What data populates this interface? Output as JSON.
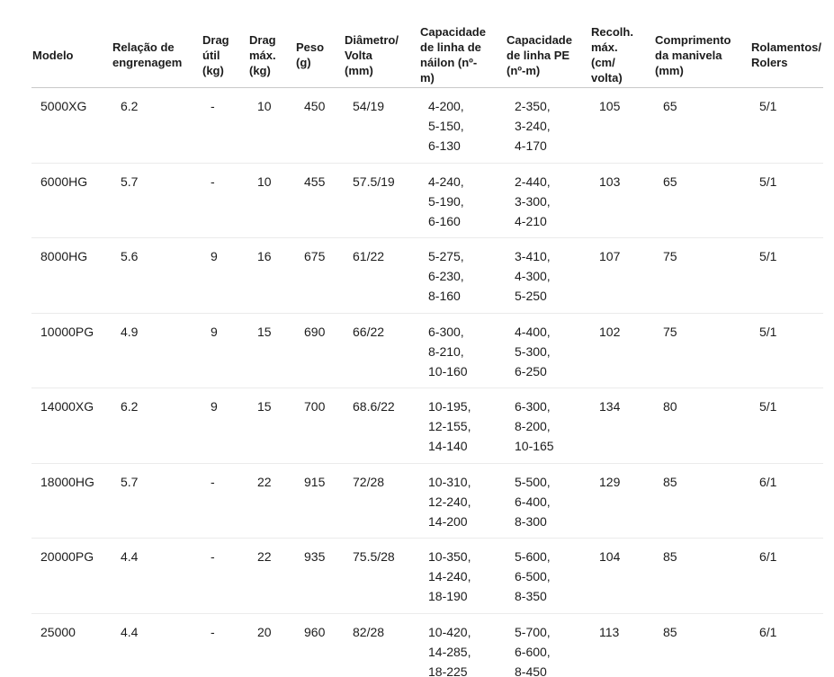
{
  "colors": {
    "background": "#ffffff",
    "text": "#1c1c1c",
    "header_divider": "#c9c9c9",
    "row_divider": "#ebebeb"
  },
  "chart_data": {
    "type": "table",
    "columns": [
      "Modelo",
      "Relação de\nengrenagem",
      "Drag\nútil\n(kg)",
      "Drag\nmáx.\n(kg)",
      "Peso\n(g)",
      "Diâmetro/\nVolta\n(mm)",
      "Capacidade\nde linha de\nnáilon (nº-\nm)",
      "Capacidade\nde linha PE\n(nº-m)",
      "Recolh.\nmáx.\n(cm/\nvolta)",
      "Comprimento\nda manivela\n(mm)",
      "Rolamentos/\nRolers"
    ],
    "rows": [
      [
        "5000XG",
        "6.2",
        "-",
        "10",
        "450",
        "54/19",
        "4-200,\n5-150,\n6-130",
        "2-350,\n3-240,\n4-170",
        "105",
        "65",
        "5/1"
      ],
      [
        "6000HG",
        "5.7",
        "-",
        "10",
        "455",
        "57.5/19",
        "4-240,\n5-190,\n6-160",
        "2-440,\n3-300,\n4-210",
        "103",
        "65",
        "5/1"
      ],
      [
        "8000HG",
        "5.6",
        "9",
        "16",
        "675",
        "61/22",
        "5-275,\n6-230,\n8-160",
        "3-410,\n4-300,\n5-250",
        "107",
        "75",
        "5/1"
      ],
      [
        "10000PG",
        "4.9",
        "9",
        "15",
        "690",
        "66/22",
        "6-300,\n8-210,\n10-160",
        "4-400,\n5-300,\n6-250",
        "102",
        "75",
        "5/1"
      ],
      [
        "14000XG",
        "6.2",
        "9",
        "15",
        "700",
        "68.6/22",
        "10-195,\n12-155,\n14-140",
        "6-300,\n8-200,\n10-165",
        "134",
        "80",
        "5/1"
      ],
      [
        "18000HG",
        "5.7",
        "-",
        "22",
        "915",
        "72/28",
        "10-310,\n12-240,\n14-200",
        "5-500,\n6-400,\n8-300",
        "129",
        "85",
        "6/1"
      ],
      [
        "20000PG",
        "4.4",
        "-",
        "22",
        "935",
        "75.5/28",
        "10-350,\n14-240,\n18-190",
        "5-600,\n6-500,\n8-350",
        "104",
        "85",
        "6/1"
      ],
      [
        "25000",
        "4.4",
        "-",
        "20",
        "960",
        "82/28",
        "10-420,\n14-285,\n18-225",
        "5-700,\n6-600,\n8-450",
        "113",
        "85",
        "6/1"
      ]
    ]
  }
}
